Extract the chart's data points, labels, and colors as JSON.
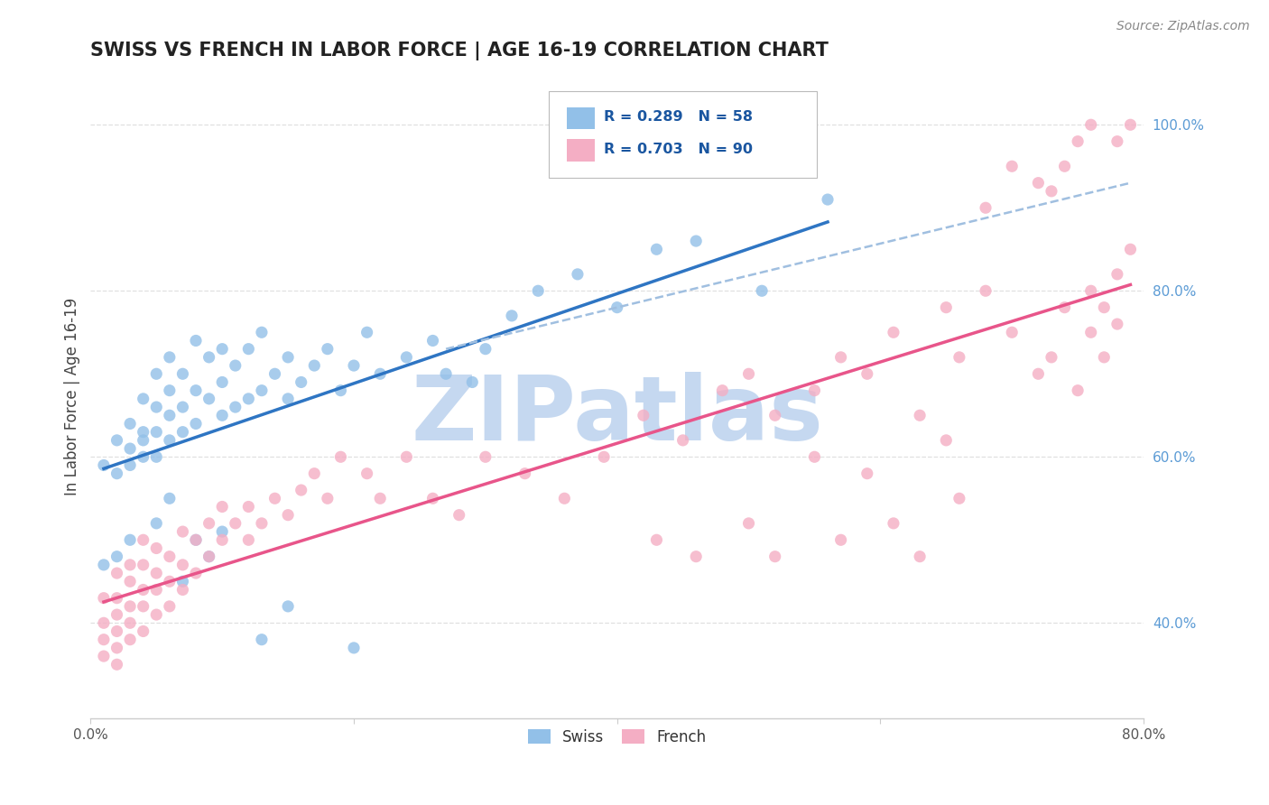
{
  "title": "SWISS VS FRENCH IN LABOR FORCE | AGE 16-19 CORRELATION CHART",
  "source_text": "Source: ZipAtlas.com",
  "ylabel": "In Labor Force | Age 16-19",
  "xlim": [
    0.0,
    0.8
  ],
  "ylim": [
    0.285,
    1.06
  ],
  "y_ticks": [
    0.4,
    0.6,
    0.8,
    1.0
  ],
  "y_tick_labels": [
    "40.0%",
    "60.0%",
    "80.0%",
    "100.0%"
  ],
  "swiss_color": "#92c0e8",
  "french_color": "#f4aec4",
  "swiss_line_color": "#2e75c3",
  "french_line_color": "#e8558a",
  "dashed_line_color": "#a0bfe0",
  "background_color": "#ffffff",
  "grid_color": "#e0e0e0",
  "title_fontsize": 15,
  "axis_label_fontsize": 12,
  "tick_fontsize": 11,
  "source_fontsize": 10,
  "R_swiss": 0.289,
  "N_swiss": 58,
  "R_french": 0.703,
  "N_french": 90,
  "swiss_x": [
    0.01,
    0.02,
    0.02,
    0.03,
    0.03,
    0.03,
    0.04,
    0.04,
    0.04,
    0.04,
    0.05,
    0.05,
    0.05,
    0.05,
    0.06,
    0.06,
    0.06,
    0.06,
    0.07,
    0.07,
    0.07,
    0.08,
    0.08,
    0.08,
    0.09,
    0.09,
    0.1,
    0.1,
    0.1,
    0.11,
    0.11,
    0.12,
    0.12,
    0.13,
    0.13,
    0.14,
    0.15,
    0.15,
    0.16,
    0.17,
    0.18,
    0.19,
    0.2,
    0.21,
    0.22,
    0.24,
    0.26,
    0.27,
    0.29,
    0.3,
    0.32,
    0.34,
    0.37,
    0.4,
    0.43,
    0.46,
    0.51,
    0.56
  ],
  "swiss_y": [
    0.59,
    0.62,
    0.58,
    0.61,
    0.64,
    0.59,
    0.6,
    0.63,
    0.67,
    0.62,
    0.6,
    0.63,
    0.66,
    0.7,
    0.65,
    0.62,
    0.68,
    0.72,
    0.66,
    0.63,
    0.7,
    0.64,
    0.68,
    0.74,
    0.67,
    0.72,
    0.65,
    0.69,
    0.73,
    0.66,
    0.71,
    0.67,
    0.73,
    0.68,
    0.75,
    0.7,
    0.67,
    0.72,
    0.69,
    0.71,
    0.73,
    0.68,
    0.71,
    0.75,
    0.7,
    0.72,
    0.74,
    0.7,
    0.69,
    0.73,
    0.77,
    0.8,
    0.82,
    0.78,
    0.85,
    0.86,
    0.8,
    0.91
  ],
  "swiss_outlier_x": [
    0.01,
    0.02,
    0.03,
    0.05,
    0.06,
    0.07,
    0.08,
    0.09,
    0.1,
    0.13,
    0.15,
    0.2
  ],
  "swiss_outlier_y": [
    0.47,
    0.48,
    0.5,
    0.52,
    0.55,
    0.45,
    0.5,
    0.48,
    0.51,
    0.38,
    0.42,
    0.37
  ],
  "french_x": [
    0.01,
    0.01,
    0.01,
    0.01,
    0.02,
    0.02,
    0.02,
    0.02,
    0.02,
    0.02,
    0.03,
    0.03,
    0.03,
    0.03,
    0.03,
    0.04,
    0.04,
    0.04,
    0.04,
    0.04,
    0.05,
    0.05,
    0.05,
    0.05,
    0.06,
    0.06,
    0.06,
    0.07,
    0.07,
    0.07,
    0.08,
    0.08,
    0.09,
    0.09,
    0.1,
    0.1,
    0.11,
    0.12,
    0.12,
    0.13,
    0.14,
    0.15,
    0.16,
    0.17,
    0.18,
    0.19,
    0.21,
    0.22,
    0.24,
    0.26,
    0.28,
    0.3,
    0.33,
    0.36,
    0.39,
    0.42,
    0.45,
    0.48,
    0.5,
    0.52,
    0.55,
    0.57,
    0.59,
    0.61,
    0.63,
    0.65,
    0.66,
    0.68,
    0.7,
    0.72,
    0.73,
    0.74,
    0.75,
    0.76,
    0.76,
    0.77,
    0.77,
    0.78,
    0.78,
    0.79
  ],
  "french_y": [
    0.36,
    0.38,
    0.4,
    0.43,
    0.37,
    0.39,
    0.41,
    0.43,
    0.46,
    0.35,
    0.38,
    0.4,
    0.42,
    0.45,
    0.47,
    0.39,
    0.42,
    0.44,
    0.47,
    0.5,
    0.41,
    0.44,
    0.46,
    0.49,
    0.42,
    0.45,
    0.48,
    0.44,
    0.47,
    0.51,
    0.46,
    0.5,
    0.48,
    0.52,
    0.5,
    0.54,
    0.52,
    0.5,
    0.54,
    0.52,
    0.55,
    0.53,
    0.56,
    0.58,
    0.55,
    0.6,
    0.58,
    0.55,
    0.6,
    0.55,
    0.53,
    0.6,
    0.58,
    0.55,
    0.6,
    0.65,
    0.62,
    0.68,
    0.7,
    0.65,
    0.68,
    0.72,
    0.7,
    0.75,
    0.65,
    0.78,
    0.72,
    0.8,
    0.75,
    0.7,
    0.72,
    0.78,
    0.68,
    0.75,
    0.8,
    0.72,
    0.78,
    0.82,
    0.76,
    0.85
  ],
  "french_outlier_x": [
    0.43,
    0.46,
    0.5,
    0.52,
    0.55,
    0.57,
    0.59,
    0.61,
    0.63,
    0.65,
    0.66,
    0.68,
    0.7,
    0.72,
    0.73,
    0.74,
    0.75,
    0.76,
    0.78,
    0.79
  ],
  "french_outlier_y": [
    0.5,
    0.48,
    0.52,
    0.48,
    0.6,
    0.5,
    0.58,
    0.52,
    0.48,
    0.62,
    0.55,
    0.9,
    0.95,
    0.93,
    0.92,
    0.95,
    0.98,
    1.0,
    0.98,
    1.0
  ],
  "watermark_text": "ZIPatlas",
  "watermark_color": "#c5d8f0",
  "watermark_fontsize": 72
}
